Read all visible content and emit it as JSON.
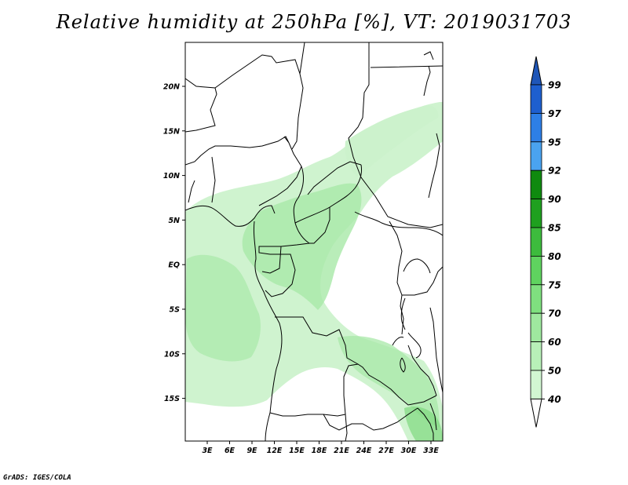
{
  "title": "Relative humidity at 250hPa [%], VT: 2019031703",
  "footer": "GrADS: IGES/COLA",
  "map": {
    "lat_labels": [
      "20N",
      "15N",
      "10N",
      "5N",
      "EQ",
      "5S",
      "10S",
      "15S"
    ],
    "lon_labels": [
      "3E",
      "6E",
      "9E",
      "12E",
      "15E",
      "18E",
      "21E",
      "24E",
      "27E",
      "30E",
      "33E"
    ]
  },
  "colorbar": {
    "levels": [
      "99",
      "97",
      "95",
      "92",
      "90",
      "85",
      "80",
      "75",
      "70",
      "60",
      "50",
      "40"
    ],
    "colors": [
      "#1e5fcf",
      "#2e7fe6",
      "#4aa3f0",
      "#0f8a0f",
      "#1fa01f",
      "#3dbb3d",
      "#5fd35f",
      "#7fe07f",
      "#9fe89f",
      "#b8f0b8",
      "#d2f6d2",
      "#ecfbec"
    ],
    "top_arrow_color": "#1f56b8",
    "bottom_arrow_color": "#ffffff"
  },
  "colors": {
    "field_light": "#ccf2cc",
    "field_mid": "#a8e8a8",
    "field_dark": "#7fd87f",
    "boundaries": "#000000"
  }
}
